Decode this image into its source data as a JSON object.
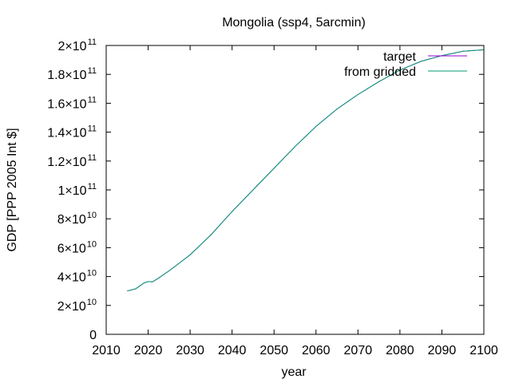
{
  "chart_data": {
    "type": "line",
    "title": "Mongolia (ssp4, 5arcmin)",
    "xlabel": "year",
    "ylabel": "GDP [PPP 2005 Int $]",
    "xlim": [
      2010,
      2100
    ],
    "ylim": [
      0,
      200000000000
    ],
    "grid": false,
    "legend_position": "top-right",
    "x_ticks": [
      {
        "value": 2010,
        "label": "2010"
      },
      {
        "value": 2020,
        "label": "2020"
      },
      {
        "value": 2030,
        "label": "2030"
      },
      {
        "value": 2040,
        "label": "2040"
      },
      {
        "value": 2050,
        "label": "2050"
      },
      {
        "value": 2060,
        "label": "2060"
      },
      {
        "value": 2070,
        "label": "2070"
      },
      {
        "value": 2080,
        "label": "2080"
      },
      {
        "value": 2090,
        "label": "2090"
      },
      {
        "value": 2100,
        "label": "2100"
      }
    ],
    "y_ticks": [
      {
        "value": 0,
        "mantissa": "0",
        "exp": ""
      },
      {
        "value": 20000000000,
        "mantissa": "2×10",
        "exp": "10"
      },
      {
        "value": 40000000000,
        "mantissa": "4×10",
        "exp": "10"
      },
      {
        "value": 60000000000,
        "mantissa": "6×10",
        "exp": "10"
      },
      {
        "value": 80000000000,
        "mantissa": "8×10",
        "exp": "10"
      },
      {
        "value": 100000000000,
        "mantissa": "1×10",
        "exp": "11"
      },
      {
        "value": 120000000000,
        "mantissa": "1.2×10",
        "exp": "11"
      },
      {
        "value": 140000000000,
        "mantissa": "1.4×10",
        "exp": "11"
      },
      {
        "value": 160000000000,
        "mantissa": "1.6×10",
        "exp": "11"
      },
      {
        "value": 180000000000,
        "mantissa": "1.8×10",
        "exp": "11"
      },
      {
        "value": 200000000000,
        "mantissa": "2×10",
        "exp": "11"
      }
    ],
    "series": [
      {
        "name": "target",
        "color": "#9400d3",
        "x": [
          2015,
          2017,
          2019,
          2020,
          2021,
          2022,
          2025,
          2030,
          2035,
          2040,
          2045,
          2050,
          2055,
          2060,
          2065,
          2070,
          2075,
          2080,
          2085,
          2090,
          2095,
          2100
        ],
        "y": [
          30000000000,
          31500000000,
          35500000000,
          36500000000,
          36300000000,
          38000000000,
          44000000000,
          55000000000,
          69000000000,
          85000000000,
          100000000000,
          115000000000,
          130000000000,
          144000000000,
          156000000000,
          166000000000,
          175000000000,
          183000000000,
          189000000000,
          193000000000,
          196000000000,
          197000000000
        ]
      },
      {
        "name": "from gridded",
        "color": "#009e73",
        "x": [
          2015,
          2017,
          2019,
          2020,
          2021,
          2022,
          2025,
          2030,
          2035,
          2040,
          2045,
          2050,
          2055,
          2060,
          2065,
          2070,
          2075,
          2080,
          2085,
          2090,
          2095,
          2100
        ],
        "y": [
          30000000000,
          31500000000,
          35500000000,
          36500000000,
          36300000000,
          38000000000,
          44000000000,
          55000000000,
          69000000000,
          85000000000,
          100000000000,
          115000000000,
          130000000000,
          144000000000,
          156000000000,
          166000000000,
          175000000000,
          183000000000,
          189000000000,
          193000000000,
          196000000000,
          197000000000
        ]
      }
    ]
  }
}
